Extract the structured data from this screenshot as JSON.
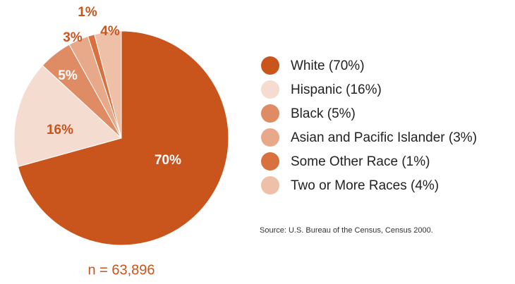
{
  "chart_data": {
    "type": "pie",
    "categories": [
      "White (70%)",
      "Hispanic (16%)",
      "Black (5%)",
      "Asian and Pacific Islander (3%)",
      "Some Other Race (1%)",
      "Two or More Races (4%)"
    ],
    "values": [
      70,
      16,
      5,
      3,
      1,
      4
    ],
    "value_labels": [
      "70%",
      "16%",
      "5%",
      "3%",
      "1%",
      "4%"
    ],
    "colors": [
      "#c9541c",
      "#f5dcd0",
      "#df8c64",
      "#e8a98a",
      "#d9713f",
      "#efc0a8"
    ],
    "source": "Source: U.S. Bureau of the Census, Census 2000.",
    "note": "n = 63,896"
  }
}
